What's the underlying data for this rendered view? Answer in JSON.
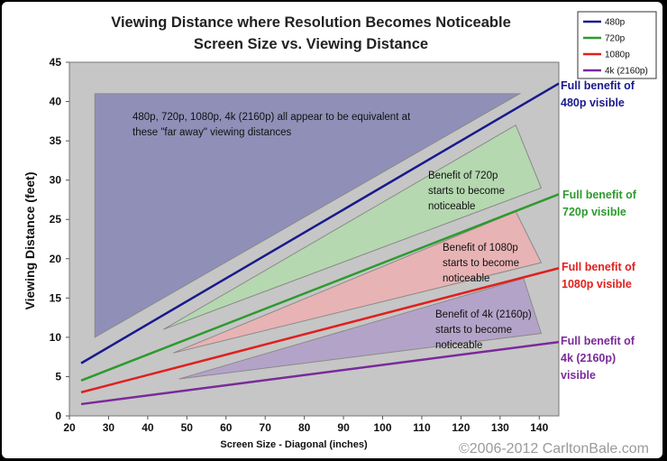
{
  "chart_data": {
    "type": "line",
    "title": "Viewing Distance where Resolution Becomes Noticeable",
    "subtitle": "Screen Size vs. Viewing Distance",
    "xlabel": "Screen Size - Diagonal (inches)",
    "ylabel": "Viewing Distance (feet)",
    "xlim": [
      20,
      145
    ],
    "ylim": [
      0,
      45
    ],
    "xticks": [
      20,
      30,
      40,
      50,
      60,
      70,
      80,
      90,
      100,
      110,
      120,
      130,
      140
    ],
    "yticks": [
      0,
      5,
      10,
      15,
      20,
      25,
      30,
      35,
      40,
      45
    ],
    "grid": false,
    "legend_position": "top-right",
    "series": [
      {
        "name": "480p",
        "color": "#1a1a8c",
        "x": [
          23,
          145
        ],
        "y": [
          6.7,
          42.3
        ]
      },
      {
        "name": "720p",
        "color": "#2e9a2e",
        "x": [
          23,
          145
        ],
        "y": [
          4.5,
          28.2
        ]
      },
      {
        "name": "1080p",
        "color": "#e0201e",
        "x": [
          23,
          145
        ],
        "y": [
          3.0,
          18.8
        ]
      },
      {
        "name": "4k (2160p)",
        "color": "#7a2a9a",
        "x": [
          23,
          145
        ],
        "y": [
          1.5,
          9.4
        ]
      }
    ],
    "regions": [
      {
        "text": "480p, 720p, 1080p, 4k (2160p) all appear to be equivalent at these \"far away\" viewing distances",
        "color": "#8f8fb8",
        "points": [
          [
            26.5,
            41
          ],
          [
            135,
            41
          ],
          [
            26.5,
            10
          ]
        ]
      },
      {
        "text": "Benefit of 720p starts to become noticeable",
        "color": "#b5d8b0",
        "points": [
          [
            44,
            11
          ],
          [
            134,
            37
          ],
          [
            140.5,
            29
          ]
        ]
      },
      {
        "text": "Benefit of 1080p starts to become noticeable",
        "color": "#e8b3b4",
        "points": [
          [
            46.5,
            8
          ],
          [
            134,
            26
          ],
          [
            140.5,
            19.5
          ]
        ]
      },
      {
        "text": "Benefit of 4k (2160p) starts to become noticeable",
        "color": "#b4a3c8",
        "points": [
          [
            48,
            4.7
          ],
          [
            136,
            17.5
          ],
          [
            140.5,
            10.5
          ]
        ]
      }
    ],
    "annotations": [
      {
        "series": "480p",
        "text": "Full benefit of 480p visible"
      },
      {
        "series": "720p",
        "text": "Full benefit of 720p visible"
      },
      {
        "series": "1080p",
        "text": "Full benefit of 1080p visible"
      },
      {
        "series": "4k (2160p)",
        "text": "Full benefit of 4k (2160p) visible"
      }
    ],
    "copyright": "©2006-2012 CarltonBale.com"
  }
}
